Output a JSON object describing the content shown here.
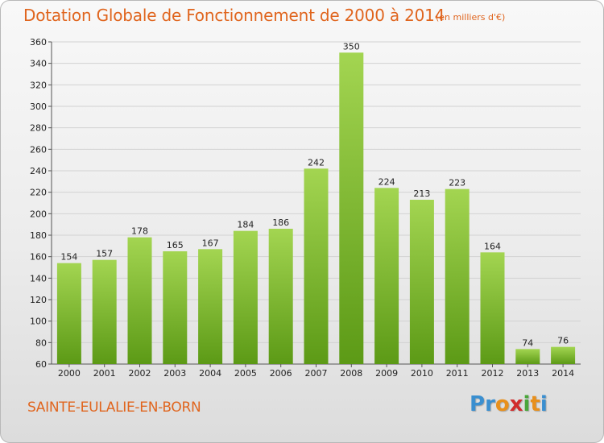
{
  "header": {
    "title": "Dotation Globale de Fonctionnement de 2000 à 2014",
    "subtitle": "(en milliers d'€)"
  },
  "footer": {
    "commune": "SAINTE-EULALIE-EN-BORN",
    "logo_letters": [
      "P",
      "r",
      "o",
      "x",
      "i",
      "t",
      "i"
    ],
    "logo_colors": [
      "#3a8fd0",
      "#3a8fd0",
      "#e8901c",
      "#d12c2c",
      "#4aa63a",
      "#e8901c",
      "#3a8fd0"
    ]
  },
  "colors": {
    "bar_top": "#a3d551",
    "bar_bottom": "#5c9a16",
    "accent": "#e0651e"
  },
  "chart_data": {
    "type": "bar",
    "title": "Dotation Globale de Fonctionnement de 2000 à 2014",
    "subtitle": "(en milliers d'€)",
    "categories": [
      "2000",
      "2001",
      "2002",
      "2003",
      "2004",
      "2005",
      "2006",
      "2007",
      "2008",
      "2009",
      "2010",
      "2011",
      "2012",
      "2013",
      "2014"
    ],
    "values": [
      154,
      157,
      178,
      165,
      167,
      184,
      186,
      242,
      350,
      224,
      213,
      223,
      164,
      74,
      76
    ],
    "ylim": [
      60,
      360
    ],
    "yticks": [
      60,
      80,
      100,
      120,
      140,
      160,
      180,
      200,
      220,
      240,
      260,
      280,
      300,
      320,
      340,
      360
    ],
    "grid": true,
    "xlabel": "",
    "ylabel": ""
  }
}
